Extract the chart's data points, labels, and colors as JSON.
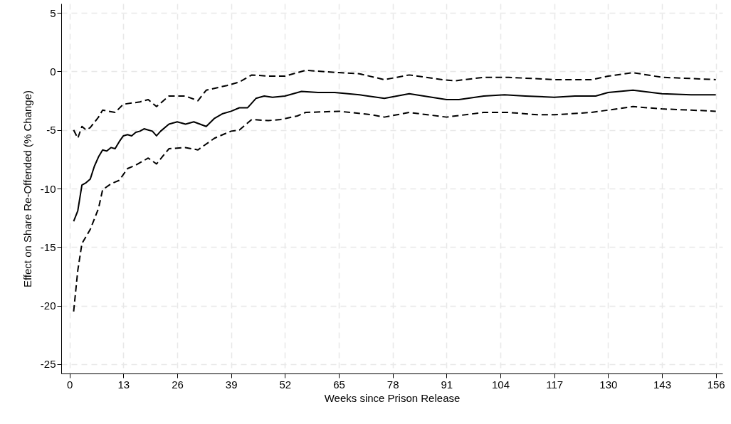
{
  "chart_data": {
    "type": "line",
    "xlabel": "Weeks since Prison Release",
    "ylabel": "Effect on Share Re-Offended (% Change)",
    "xlim": [
      -2,
      157.6
    ],
    "xticks": [
      0,
      13,
      26,
      39,
      52,
      65,
      78,
      91,
      104,
      117,
      130,
      143,
      156
    ],
    "ylim": [
      -25.8,
      5.8
    ],
    "yticks": [
      -25,
      -20,
      -15,
      -10,
      -5,
      0,
      5
    ],
    "grid": true,
    "series": [
      {
        "color": "#000000",
        "line_style": "solid",
        "x": [
          1,
          2,
          3,
          4,
          5,
          6,
          7,
          8,
          9,
          10,
          11,
          12,
          13,
          14,
          15,
          16,
          17,
          18,
          19,
          20,
          21,
          22,
          24,
          26,
          28,
          30,
          33,
          35,
          37,
          39,
          41,
          43,
          45,
          47,
          49,
          52,
          56,
          60,
          64,
          70,
          76,
          82,
          91,
          94,
          100,
          105,
          110,
          117,
          122,
          127,
          130,
          136,
          143,
          150,
          156
        ],
        "values": [
          -12.8,
          -11.9,
          -9.7,
          -9.5,
          -9.2,
          -8.1,
          -7.3,
          -6.7,
          -6.8,
          -6.5,
          -6.6,
          -6.0,
          -5.5,
          -5.4,
          -5.5,
          -5.2,
          -5.1,
          -4.9,
          -5.0,
          -5.1,
          -5.5,
          -5.1,
          -4.5,
          -4.3,
          -4.5,
          -4.3,
          -4.7,
          -4.0,
          -3.6,
          -3.4,
          -3.1,
          -3.1,
          -2.3,
          -2.1,
          -2.2,
          -2.1,
          -1.7,
          -1.8,
          -1.8,
          -2.0,
          -2.3,
          -1.9,
          -2.4,
          -2.4,
          -2.1,
          -2.0,
          -2.1,
          -2.2,
          -2.1,
          -2.1,
          -1.8,
          -1.6,
          -1.9,
          -2.0,
          -2.0
        ]
      },
      {
        "color": "#000000",
        "line_style": "dashed",
        "x": [
          1,
          2,
          3,
          4,
          5,
          7,
          8,
          11,
          13,
          17,
          19,
          21,
          24,
          28,
          31,
          33,
          38,
          41,
          44,
          48,
          52,
          57,
          65,
          70,
          76,
          82,
          90,
          93,
          100,
          106,
          117,
          126,
          130,
          136,
          143,
          150,
          156
        ],
        "values": [
          -5.0,
          -5.7,
          -4.7,
          -5.0,
          -4.8,
          -3.9,
          -3.3,
          -3.5,
          -2.8,
          -2.6,
          -2.4,
          -3.0,
          -2.1,
          -2.1,
          -2.5,
          -1.6,
          -1.2,
          -0.9,
          -0.3,
          -0.4,
          -0.4,
          0.1,
          -0.1,
          -0.2,
          -0.7,
          -0.3,
          -0.7,
          -0.8,
          -0.5,
          -0.5,
          -0.7,
          -0.7,
          -0.4,
          -0.1,
          -0.5,
          -0.6,
          -0.7
        ]
      },
      {
        "color": "#000000",
        "line_style": "dashed",
        "x": [
          1,
          2,
          3,
          5,
          7,
          8,
          10,
          12,
          14,
          16,
          19,
          21,
          24,
          28,
          31,
          35,
          39,
          41,
          44,
          48,
          51,
          55,
          57,
          65,
          73,
          76,
          82,
          91,
          100,
          106,
          113,
          117,
          126,
          130,
          136,
          143,
          150,
          156
        ],
        "values": [
          -20.5,
          -17.0,
          -14.7,
          -13.5,
          -11.7,
          -10.1,
          -9.6,
          -9.3,
          -8.3,
          -8.0,
          -7.4,
          -7.9,
          -6.6,
          -6.5,
          -6.7,
          -5.7,
          -5.1,
          -5.0,
          -4.1,
          -4.2,
          -4.1,
          -3.8,
          -3.5,
          -3.4,
          -3.7,
          -3.9,
          -3.5,
          -3.9,
          -3.5,
          -3.5,
          -3.7,
          -3.7,
          -3.5,
          -3.3,
          -3.0,
          -3.2,
          -3.3,
          -3.4
        ]
      }
    ]
  }
}
